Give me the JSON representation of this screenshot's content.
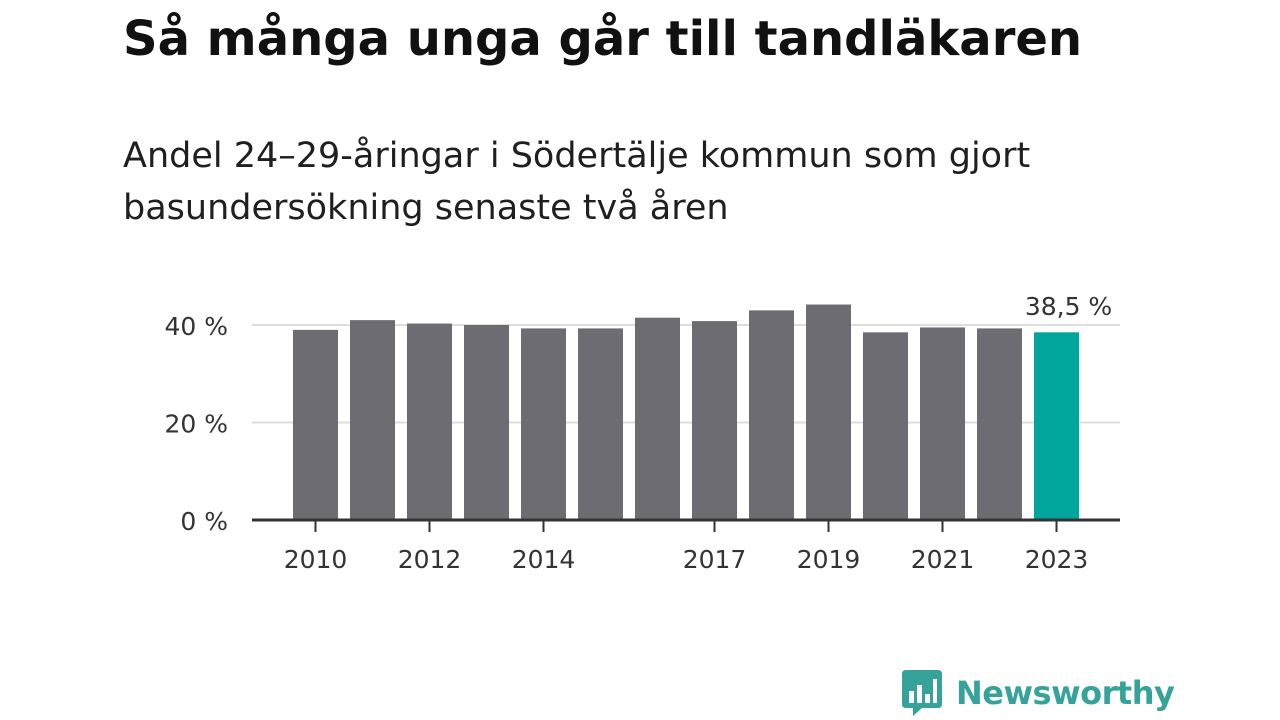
{
  "header": {
    "title": "Så många unga går till tandläkaren",
    "subtitle": "Andel 24–29-åringar i Södertälje kommun som gjort basundersökning senaste två åren"
  },
  "chart_data": {
    "type": "bar",
    "categories": [
      "2010",
      "2011",
      "2012",
      "2013",
      "2014",
      "2015",
      "2016",
      "2017",
      "2018",
      "2019",
      "2020",
      "2021",
      "2022",
      "2023"
    ],
    "values": [
      39.0,
      41.0,
      40.3,
      40.0,
      39.3,
      39.3,
      41.5,
      40.8,
      43.0,
      44.2,
      38.5,
      39.5,
      39.3,
      38.5
    ],
    "highlight_index": 13,
    "highlight_label": "38,5 %",
    "x_tick_labels": [
      "2010",
      "",
      "2012",
      "",
      "2014",
      "",
      "",
      "2017",
      "",
      "2019",
      "",
      "2021",
      "",
      "2023"
    ],
    "y_ticks": [
      {
        "value": 0,
        "label": "0 %"
      },
      {
        "value": 20,
        "label": "20 %"
      },
      {
        "value": 40,
        "label": "40 %"
      }
    ],
    "ylim": [
      0,
      47
    ],
    "colors": {
      "bar": "#6d6c72",
      "highlight": "#00a69c",
      "grid": "#dddddd",
      "axis": "#333333"
    },
    "grid": true
  },
  "brand": {
    "name": "Newsworthy",
    "icon": "newsworthy-logo-icon",
    "color": "#36a39a"
  }
}
